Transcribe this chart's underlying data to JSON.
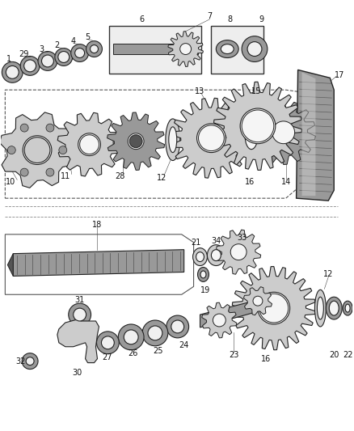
{
  "bg_color": "#ffffff",
  "figsize": [
    4.38,
    5.33
  ],
  "dpi": 100,
  "line_color": "#222222",
  "fill_dark": "#555555",
  "fill_mid": "#999999",
  "fill_light": "#cccccc",
  "fill_white": "#f5f5f5"
}
